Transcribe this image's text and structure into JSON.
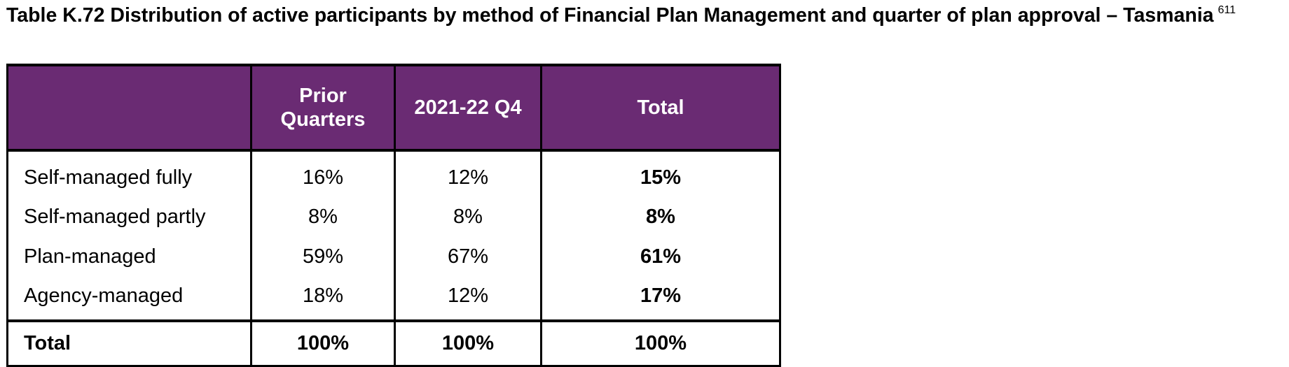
{
  "caption": {
    "text": "Table K.72 Distribution of active participants by method of Financial Plan Management and quarter of plan approval – Tasmania",
    "footnote": "611"
  },
  "table": {
    "header_fill": "#6a2b73",
    "columns": [
      "",
      "Prior Quarters",
      "2021-22 Q4",
      "Total"
    ],
    "rows": [
      {
        "label": "Self-managed fully",
        "prior": "16%",
        "q4": "12%",
        "total": "15%"
      },
      {
        "label": "Self-managed partly",
        "prior": "8%",
        "q4": "8%",
        "total": "8%"
      },
      {
        "label": "Plan-managed",
        "prior": "59%",
        "q4": "67%",
        "total": "61%"
      },
      {
        "label": "Agency-managed",
        "prior": "18%",
        "q4": "12%",
        "total": "17%"
      }
    ],
    "total_row": {
      "label": "Total",
      "prior": "100%",
      "q4": "100%",
      "total": "100%"
    }
  }
}
